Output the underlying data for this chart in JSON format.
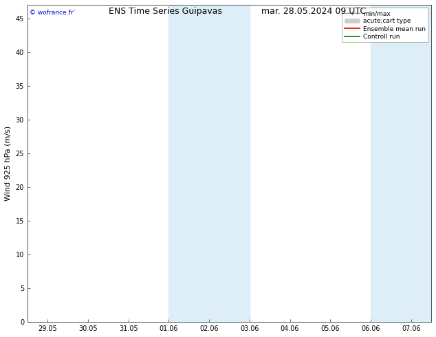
{
  "title_left": "ENS Time Series Guipavas",
  "title_right": "mar. 28.05.2024 09 UTC",
  "ylabel": "Wind 925 hPa (m/s)",
  "copyright": "© wofrance.fr’",
  "ylim": [
    0,
    47
  ],
  "yticks": [
    0,
    5,
    10,
    15,
    20,
    25,
    30,
    35,
    40,
    45
  ],
  "xtick_labels": [
    "29.05",
    "30.05",
    "31.05",
    "01.06",
    "02.06",
    "03.06",
    "04.06",
    "05.06",
    "06.06",
    "07.06"
  ],
  "xtick_positions": [
    0,
    1,
    2,
    3,
    4,
    5,
    6,
    7,
    8,
    9
  ],
  "shaded_bands": [
    {
      "xstart": 3,
      "xend": 5
    },
    {
      "xstart": 8,
      "xend": 9.5
    }
  ],
  "bg_color": "#ffffff",
  "shade_color": "#ddeef8",
  "legend_entries": [
    {
      "label": "min/max",
      "color": "#999999",
      "lw": 1.0,
      "style": "minmax"
    },
    {
      "label": "acute;cart type",
      "color": "#cccccc",
      "lw": 5,
      "style": "thick"
    },
    {
      "label": "Ensemble mean run",
      "color": "#ff0000",
      "lw": 1.2,
      "style": "solid"
    },
    {
      "label": "Controll run",
      "color": "#008000",
      "lw": 1.2,
      "style": "solid"
    }
  ],
  "title_fontsize": 9,
  "ylabel_fontsize": 8,
  "copyright_color": "#0000dd",
  "tick_label_fontsize": 7,
  "legend_fontsize": 6.5
}
